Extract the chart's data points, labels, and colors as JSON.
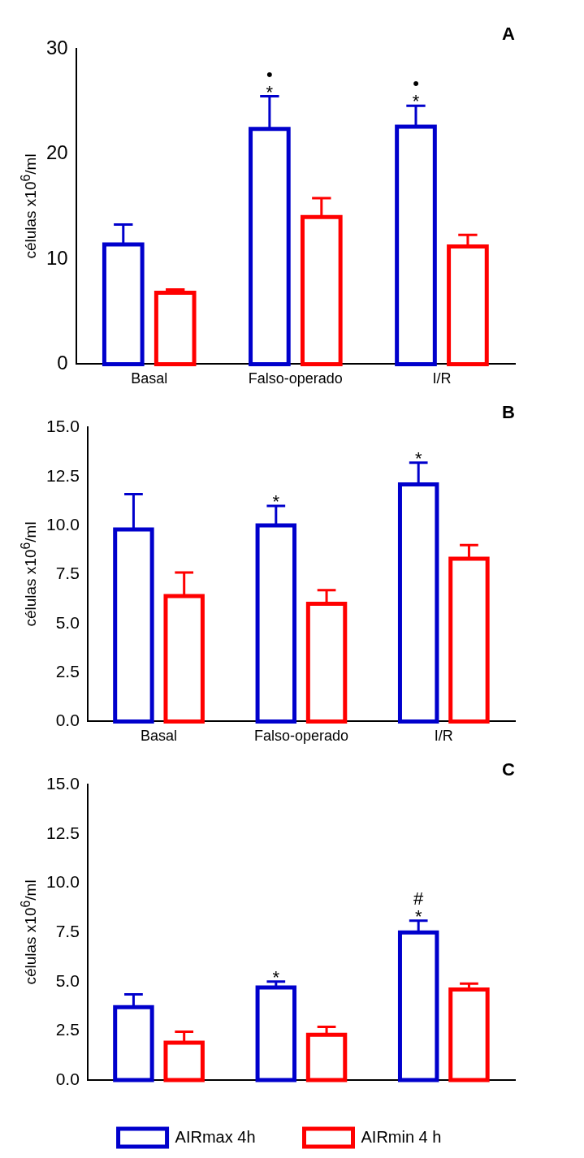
{
  "chart_data": [
    {
      "type": "bar",
      "title": "A",
      "ylabel": "células x10$^{6}$/ml",
      "categories": [
        "Basal",
        "Falso-operado",
        "I/R"
      ],
      "grid": false,
      "series": [
        {
          "color": "#0000cc",
          "values": [
            11.4,
            22.4,
            22.6
          ],
          "errors": [
            [
              11.4,
              13.3
            ],
            [
              22.4,
              25.5
            ],
            [
              22.6,
              24.6
            ]
          ]
        },
        {
          "color": "#ff0000",
          "values": [
            6.8,
            14.0,
            11.2
          ],
          "errors": [
            [
              6.8,
              7.1
            ],
            [
              14.0,
              15.8
            ],
            [
              11.2,
              12.3
            ]
          ]
        }
      ],
      "ylim": [
        0,
        30
      ],
      "yticks": [
        0,
        10,
        20,
        30
      ],
      "annotations": [
        {
          "text": "*",
          "y": 25.5
        },
        {
          "text": "•",
          "y": 25.5
        },
        {
          "text": "*",
          "y": 24.6
        },
        {
          "text": "•",
          "y": 24.6
        }
      ]
    },
    {
      "type": "bar",
      "title": "B",
      "ylabel": "células x10$^{6}$/ml",
      "categories": [
        "Basal",
        "Falso-operado",
        "I/R"
      ],
      "grid": false,
      "series": [
        {
          "color": "#0000cc",
          "values": [
            9.8,
            10.0,
            12.1
          ],
          "errors": [
            [
              9.8,
              11.6
            ],
            [
              10.0,
              11.0
            ],
            [
              12.1,
              13.2
            ]
          ]
        },
        {
          "color": "#ff0000",
          "values": [
            6.4,
            6.0,
            8.3
          ],
          "errors": [
            [
              6.4,
              7.6
            ],
            [
              6.0,
              6.7
            ],
            [
              8.3,
              9.0
            ]
          ]
        }
      ],
      "ylim": [
        0,
        15
      ],
      "yticks": [
        {
          "value": 0,
          "label": "0.0"
        },
        {
          "value": 2.5,
          "label": "2.5"
        },
        {
          "value": 5,
          "label": "5.0"
        },
        {
          "value": 7.5,
          "label": "7.5"
        },
        {
          "value": 10,
          "label": "10.0"
        },
        {
          "value": 12.5,
          "label": "12.5"
        },
        {
          "value": 15,
          "label": "15.0"
        }
      ],
      "annotations": [
        {
          "text": "*",
          "y": 11.0
        },
        {
          "text": "*",
          "y": 13.2
        }
      ]
    },
    {
      "type": "bar",
      "title": "C",
      "ylabel": "células x10$^{6}$/ml",
      "categories": [
        null,
        null,
        null
      ],
      "grid": false,
      "tick_labels": "y",
      "legend": "bottom",
      "series": [
        {
          "name": "AIRmax 4h",
          "color": "#0000cc",
          "values": [
            3.7,
            4.7,
            7.5
          ],
          "errors": [
            [
              3.7,
              4.35
            ],
            [
              4.7,
              5.0
            ],
            [
              7.5,
              8.1
            ]
          ]
        },
        {
          "name": "AIRmin 4 h",
          "color": "#ff0000",
          "values": [
            1.9,
            2.3,
            4.6
          ],
          "errors": [
            [
              1.9,
              2.45
            ],
            [
              2.3,
              2.7
            ],
            [
              4.6,
              4.9
            ]
          ]
        }
      ],
      "ylim": [
        0,
        15
      ],
      "yticks": [
        {
          "value": 0,
          "label": "0.0"
        },
        {
          "value": 2.5,
          "label": "2.5"
        },
        {
          "value": 5,
          "label": "5.0"
        },
        {
          "value": 7.5,
          "label": "7.5"
        },
        {
          "value": 10,
          "label": "10.0"
        },
        {
          "value": 12.5,
          "label": "12.5"
        },
        {
          "value": 15,
          "label": "15.0"
        }
      ],
      "annotations": [
        {
          "text": "*",
          "y": 5.0
        },
        {
          "text": "*",
          "y": 8.1
        },
        {
          "text": "#",
          "y": 8.1
        }
      ]
    }
  ]
}
